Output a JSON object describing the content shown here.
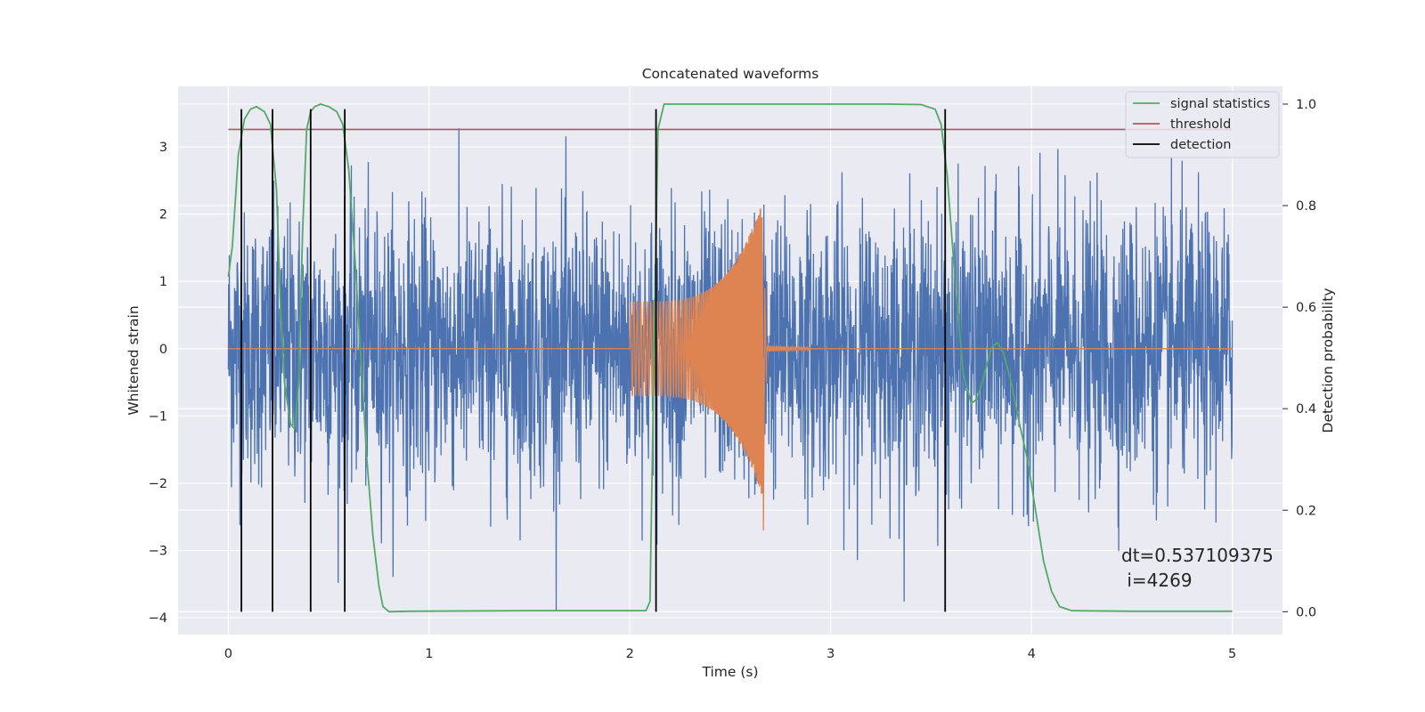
{
  "chart_data": {
    "type": "line",
    "title": "Concatenated waveforms",
    "xlabel": "Time (s)",
    "ylabel": "Whitened strain",
    "y2label": "Detection probability",
    "xlim": [
      -0.25,
      5.25
    ],
    "ylim": [
      -4.25,
      3.9
    ],
    "y2lim": [
      -0.045,
      1.035
    ],
    "x_ticks": [
      0,
      1,
      2,
      3,
      4,
      5
    ],
    "x_tick_labels": [
      "0",
      "1",
      "2",
      "3",
      "4",
      "5"
    ],
    "y_ticks": [
      -4,
      -3,
      -2,
      -1,
      0,
      1,
      2,
      3
    ],
    "y_tick_labels": [
      "−4",
      "−3",
      "−2",
      "−1",
      "0",
      "1",
      "2",
      "3"
    ],
    "y2_ticks": [
      0.0,
      0.2,
      0.4,
      0.6,
      0.8,
      1.0
    ],
    "y2_tick_labels": [
      "0.0",
      "0.2",
      "0.4",
      "0.6",
      "0.8",
      "1.0"
    ],
    "grid": true,
    "legend_position": "top-right",
    "colors": {
      "background": "#eaeaf2",
      "grid": "#ffffff",
      "noise": "#4c72b0",
      "waveform": "#dd8452",
      "signal_statistics": "#55a868",
      "threshold": "#c44e52",
      "detection": "#000000"
    },
    "series": [
      {
        "name": "",
        "role": "whitened noisy strain",
        "color": "#4c72b0",
        "x_range": [
          0,
          5
        ],
        "typical_amplitude": 1.0,
        "peak_max": 3.55,
        "peak_min": -3.9
      },
      {
        "name": "",
        "role": "injected waveform",
        "color": "#dd8452",
        "x_range": [
          2.0,
          2.69
        ],
        "start_amplitude": 0.7,
        "peak_positive": 2.2,
        "peak_negative": -2.7,
        "merger_time": 2.66,
        "ringdown_end": 2.9
      },
      {
        "name": "signal statistics",
        "axis": "right",
        "color": "#55a868",
        "x": [
          0.0,
          0.02,
          0.05,
          0.08,
          0.11,
          0.14,
          0.18,
          0.21,
          0.24,
          0.26,
          0.28,
          0.31,
          0.33,
          0.35,
          0.37,
          0.39,
          0.41,
          0.43,
          0.46,
          0.5,
          0.54,
          0.57,
          0.6,
          0.63,
          0.66,
          0.69,
          0.72,
          0.75,
          0.77,
          0.8,
          0.9,
          1.5,
          2.0,
          2.08,
          2.1,
          2.12,
          2.14,
          2.17,
          2.3,
          2.8,
          3.3,
          3.45,
          3.52,
          3.55,
          3.58,
          3.62,
          3.66,
          3.7,
          3.73,
          3.76,
          3.8,
          3.83,
          3.86,
          3.9,
          3.94,
          3.98,
          4.02,
          4.06,
          4.1,
          4.14,
          4.2,
          4.5,
          5.0
        ],
        "y": [
          0.66,
          0.72,
          0.9,
          0.97,
          0.99,
          0.995,
          0.985,
          0.96,
          0.83,
          0.6,
          0.45,
          0.37,
          0.36,
          0.45,
          0.75,
          0.95,
          0.985,
          0.995,
          1.0,
          0.995,
          0.985,
          0.96,
          0.87,
          0.7,
          0.5,
          0.3,
          0.15,
          0.05,
          0.01,
          0.0,
          0.001,
          0.002,
          0.002,
          0.002,
          0.02,
          0.5,
          0.95,
          1.0,
          1.0,
          1.0,
          1.0,
          0.999,
          0.99,
          0.96,
          0.86,
          0.65,
          0.47,
          0.41,
          0.42,
          0.46,
          0.52,
          0.53,
          0.51,
          0.45,
          0.37,
          0.3,
          0.2,
          0.1,
          0.04,
          0.01,
          0.002,
          0.001,
          0.001
        ]
      },
      {
        "name": "threshold",
        "axis": "right",
        "color": "#c44e52",
        "x": [
          0,
          5
        ],
        "y": [
          0.95,
          0.95
        ]
      },
      {
        "name": "detection",
        "axis": "right",
        "color": "#000000",
        "type": "vlines",
        "x": [
          0.065,
          0.22,
          0.41,
          0.58,
          2.13,
          3.57
        ],
        "y_range": [
          0.0,
          0.99
        ]
      }
    ],
    "annotation": {
      "line1": "dt=0.537109375",
      "line2": " i=4269",
      "x": 4.5,
      "y": -3.4
    }
  }
}
